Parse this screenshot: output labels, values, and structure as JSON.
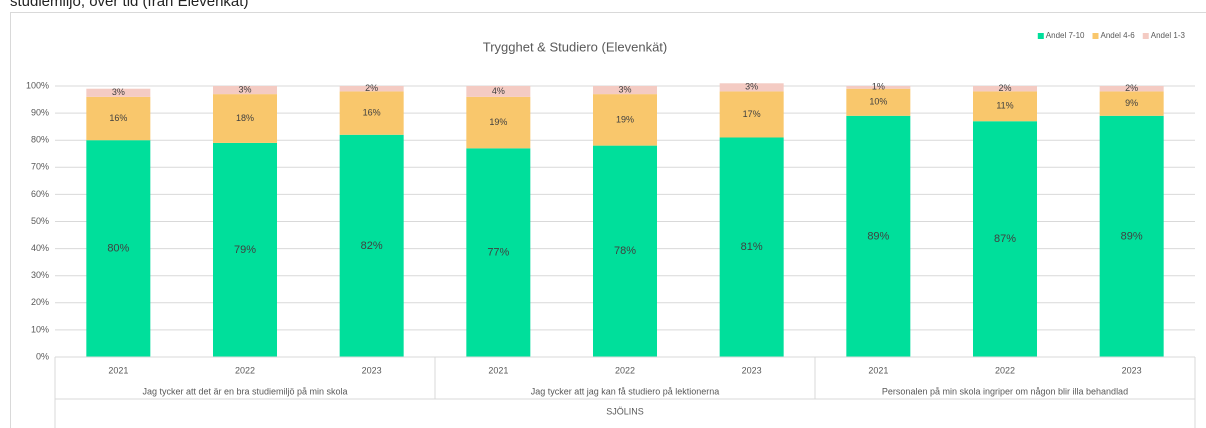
{
  "page_heading": "studiemiljö, över tid (från Elevenkät)",
  "chart_data": {
    "type": "stacked_bar",
    "title": "Trygghet & Studiero (Elevenkät)",
    "categories": [
      "2021",
      "2022",
      "2023",
      "2021",
      "2022",
      "2023",
      "2021",
      "2022",
      "2023"
    ],
    "groups": [
      "Jag tycker att det är en bra studiemiljö på min skola",
      "Jag tycker att jag kan få studiero på lektionerna",
      "Personalen på min skola ingriper om någon blir illa behandlad"
    ],
    "group_label": "SJÖLINS",
    "series": [
      {
        "name": "Andel 7-10",
        "color": "#00df9b",
        "values": [
          80,
          79,
          82,
          77,
          78,
          81,
          89,
          87,
          89
        ],
        "value_labels": [
          "80%",
          "79%",
          "82%",
          "77%",
          "78%",
          "81%",
          "89%",
          "87%",
          "89%"
        ]
      },
      {
        "name": "Andel 4-6",
        "color": "#f9c76c",
        "values": [
          16,
          18,
          16,
          19,
          19,
          17,
          10,
          11,
          9
        ],
        "value_labels": [
          "16%",
          "18%",
          "16%",
          "19%",
          "19%",
          "17%",
          "10%",
          "11%",
          "9%"
        ]
      },
      {
        "name": "Andel 1-3",
        "color": "#f4cbc3",
        "values": [
          3,
          3,
          2,
          4,
          3,
          3,
          1,
          2,
          2
        ],
        "value_labels": [
          "3%",
          "3%",
          "2%",
          "4%",
          "3%",
          "3%",
          "1%",
          "2%",
          "2%"
        ]
      }
    ],
    "ylim": [
      0,
      100
    ],
    "yticks": [
      {
        "value": 0,
        "label": "0%"
      },
      {
        "value": 10,
        "label": "10%"
      },
      {
        "value": 20,
        "label": "20%"
      },
      {
        "value": 30,
        "label": "30%"
      },
      {
        "value": 40,
        "label": "40%"
      },
      {
        "value": 50,
        "label": "50%"
      },
      {
        "value": 60,
        "label": "60%"
      },
      {
        "value": 70,
        "label": "70%"
      },
      {
        "value": 80,
        "label": "80%"
      },
      {
        "value": 90,
        "label": "90%"
      },
      {
        "value": 100,
        "label": "100%"
      }
    ],
    "grid": true,
    "legend": "top-right"
  }
}
